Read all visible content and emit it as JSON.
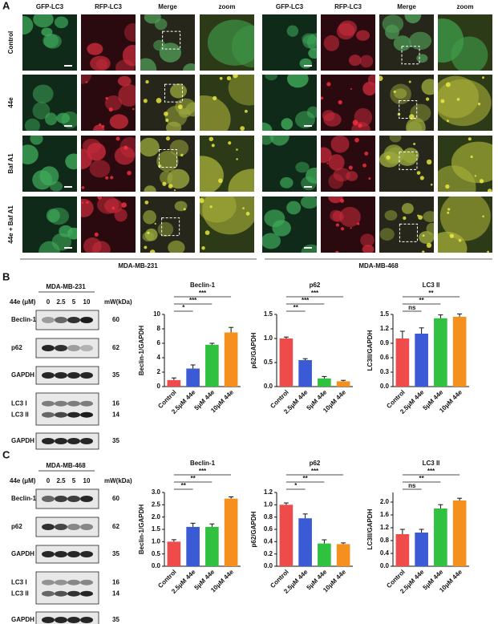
{
  "panel_a": {
    "label": "A",
    "column_headers": [
      "GFP-LC3",
      "RFP-LC3",
      "Merge",
      "zoom",
      "GFP-LC3",
      "RFP-LC3",
      "Merge",
      "zoom"
    ],
    "row_labels": [
      "Control",
      "44e",
      "Baf A1",
      "44e + Baf A1"
    ],
    "cell_lines": [
      "MDA-MB-231",
      "MDA-MB-468"
    ]
  },
  "panel_b": {
    "label": "B",
    "blot": {
      "cell_line": "MDA-MB-231",
      "treatment_label": "44e (μM)",
      "doses": [
        0,
        2.5,
        5,
        10
      ],
      "mw_label": "mW(kDa)",
      "rows": [
        {
          "proteins": [
            "Beclin-1"
          ],
          "mw": [
            60
          ]
        },
        {
          "proteins": [
            "p62"
          ],
          "mw": [
            62
          ]
        },
        {
          "proteins": [
            "GAPDH"
          ],
          "mw": [
            35
          ]
        },
        {
          "proteins": [
            "LC3 I",
            "LC3 II"
          ],
          "mw": [
            16,
            14
          ]
        },
        {
          "proteins": [
            "GAPDH"
          ],
          "mw": [
            35
          ]
        }
      ]
    }
  },
  "panel_c": {
    "label": "C",
    "blot": {
      "cell_line": "MDA-MB-468",
      "treatment_label": "44e (μM)",
      "doses": [
        0,
        2.5,
        5,
        10
      ],
      "mw_label": "mW(kDa)",
      "rows": [
        {
          "proteins": [
            "Beclin-1"
          ],
          "mw": [
            60
          ]
        },
        {
          "proteins": [
            "p62"
          ],
          "mw": [
            62
          ]
        },
        {
          "proteins": [
            "GAPDH"
          ],
          "mw": [
            35
          ]
        },
        {
          "proteins": [
            "LC3 I",
            "LC3 II"
          ],
          "mw": [
            16,
            14
          ]
        },
        {
          "proteins": [
            "GAPDH"
          ],
          "mw": [
            35
          ]
        }
      ]
    }
  },
  "chart_data": [
    {
      "type": "bar",
      "title": "Beclin-1",
      "y_label": "Beclin-1/GAPDH",
      "categories": [
        "Control",
        "2.5μM 44e",
        "5μM 44e",
        "10μM 44e"
      ],
      "values": [
        0.9,
        2.5,
        5.8,
        7.5
      ],
      "errors": [
        0.3,
        0.5,
        0.2,
        0.7
      ],
      "colors": [
        "#ef4b4b",
        "#3b5bd6",
        "#2fc13f",
        "#f5901e"
      ],
      "ylim": [
        0,
        10
      ],
      "yticks": [
        0,
        2,
        4,
        6,
        8,
        10
      ],
      "comparisons": [
        {
          "groups": [
            "Control",
            "2.5μM 44e"
          ],
          "label": "*"
        },
        {
          "groups": [
            "Control",
            "5μM 44e"
          ],
          "label": "***"
        },
        {
          "groups": [
            "Control",
            "10μM 44e"
          ],
          "label": "***"
        }
      ]
    },
    {
      "type": "bar",
      "title": "p62",
      "y_label": "p62/GAPDH",
      "categories": [
        "Control",
        "2.5μM 44e",
        "5μM 44e",
        "10μM 44e"
      ],
      "values": [
        1.0,
        0.55,
        0.17,
        0.11
      ],
      "errors": [
        0.03,
        0.03,
        0.04,
        0.02
      ],
      "colors": [
        "#ef4b4b",
        "#3b5bd6",
        "#2fc13f",
        "#f5901e"
      ],
      "ylim": [
        0,
        1.5
      ],
      "yticks": [
        {
          "value": 0,
          "label": "0.0"
        },
        0.5,
        {
          "value": 1,
          "label": "1.0"
        },
        1.5
      ],
      "comparisons": [
        {
          "groups": [
            "Control",
            "2.5μM 44e"
          ],
          "label": "**"
        },
        {
          "groups": [
            "Control",
            "5μM 44e"
          ],
          "label": "***"
        },
        {
          "groups": [
            "Control",
            "10μM 44e"
          ],
          "label": "***"
        }
      ]
    },
    {
      "type": "bar",
      "title": "LC3 II",
      "y_label": "LC3II/GAPDH",
      "categories": [
        "Control",
        "2.5μM 44e",
        "5μM 44e",
        "10μM 44e"
      ],
      "values": [
        1.0,
        1.1,
        1.42,
        1.45
      ],
      "errors": [
        0.15,
        0.12,
        0.07,
        0.06
      ],
      "colors": [
        "#ef4b4b",
        "#3b5bd6",
        "#2fc13f",
        "#f5901e"
      ],
      "ylim": [
        0,
        1.5
      ],
      "yticks": [
        {
          "value": 0,
          "label": "0.0"
        },
        0.3,
        0.6,
        0.9,
        1.2,
        1.5
      ],
      "comparisons": [
        {
          "groups": [
            "Control",
            "2.5μM 44e"
          ],
          "label": "ns"
        },
        {
          "groups": [
            "Control",
            "5μM 44e"
          ],
          "label": "**"
        },
        {
          "groups": [
            "Control",
            "10μM 44e"
          ],
          "label": "**"
        }
      ]
    },
    {
      "type": "bar",
      "title": "Beclin-1",
      "y_label": "Beclin-1/GAPDH",
      "categories": [
        "Control",
        "2.5μM 44e",
        "5μM 44e",
        "10μM 44e"
      ],
      "values": [
        1.0,
        1.6,
        1.6,
        2.75
      ],
      "errors": [
        0.08,
        0.15,
        0.12,
        0.07
      ],
      "colors": [
        "#ef4b4b",
        "#3b5bd6",
        "#2fc13f",
        "#f5901e"
      ],
      "ylim": [
        0,
        3
      ],
      "yticks": [
        {
          "value": 0,
          "label": "0.0"
        },
        0.5,
        {
          "value": 1,
          "label": "1.0"
        },
        1.5,
        {
          "value": 2,
          "label": "2.0"
        },
        2.5,
        {
          "value": 3,
          "label": "3.0"
        }
      ],
      "comparisons": [
        {
          "groups": [
            "Control",
            "2.5μM 44e"
          ],
          "label": "**"
        },
        {
          "groups": [
            "Control",
            "5μM 44e"
          ],
          "label": "**"
        },
        {
          "groups": [
            "Control",
            "10μM 44e"
          ],
          "label": "***"
        }
      ]
    },
    {
      "type": "bar",
      "title": "p62",
      "y_label": "p62/GAPDH",
      "categories": [
        "Control",
        "2.5μM 44e",
        "5μM 44e",
        "10μM 44e"
      ],
      "values": [
        1.0,
        0.78,
        0.37,
        0.36
      ],
      "errors": [
        0.03,
        0.07,
        0.06,
        0.02
      ],
      "colors": [
        "#ef4b4b",
        "#3b5bd6",
        "#2fc13f",
        "#f5901e"
      ],
      "ylim": [
        0,
        1.2
      ],
      "yticks": [
        {
          "value": 0,
          "label": "0.0"
        },
        0.2,
        0.4,
        0.6,
        0.8,
        {
          "value": 1,
          "label": "1.0"
        },
        1.2
      ],
      "comparisons": [
        {
          "groups": [
            "Control",
            "2.5μM 44e"
          ],
          "label": "*"
        },
        {
          "groups": [
            "Control",
            "5μM 44e"
          ],
          "label": "**"
        },
        {
          "groups": [
            "Control",
            "10μM 44e"
          ],
          "label": "***"
        }
      ]
    },
    {
      "type": "bar",
      "title": "LC3 II",
      "y_label": "LC3II/GAPDH",
      "categories": [
        "Control",
        "2.5μM 44e",
        "5μM 44e",
        "10μM 44e"
      ],
      "values": [
        1.0,
        1.05,
        1.8,
        2.05
      ],
      "errors": [
        0.15,
        0.1,
        0.12,
        0.07
      ],
      "colors": [
        "#ef4b4b",
        "#3b5bd6",
        "#2fc13f",
        "#f5901e"
      ],
      "ylim": [
        0,
        2.3
      ],
      "yticks": [
        {
          "value": 0,
          "label": "0.0"
        },
        0.4,
        0.8,
        1.2,
        1.6,
        {
          "value": 2,
          "label": "2.0"
        }
      ],
      "comparisons": [
        {
          "groups": [
            "Control",
            "2.5μM 44e"
          ],
          "label": "ns"
        },
        {
          "groups": [
            "Control",
            "5μM 44e"
          ],
          "label": "**"
        },
        {
          "groups": [
            "Control",
            "10μM 44e"
          ],
          "label": "***"
        }
      ]
    }
  ]
}
